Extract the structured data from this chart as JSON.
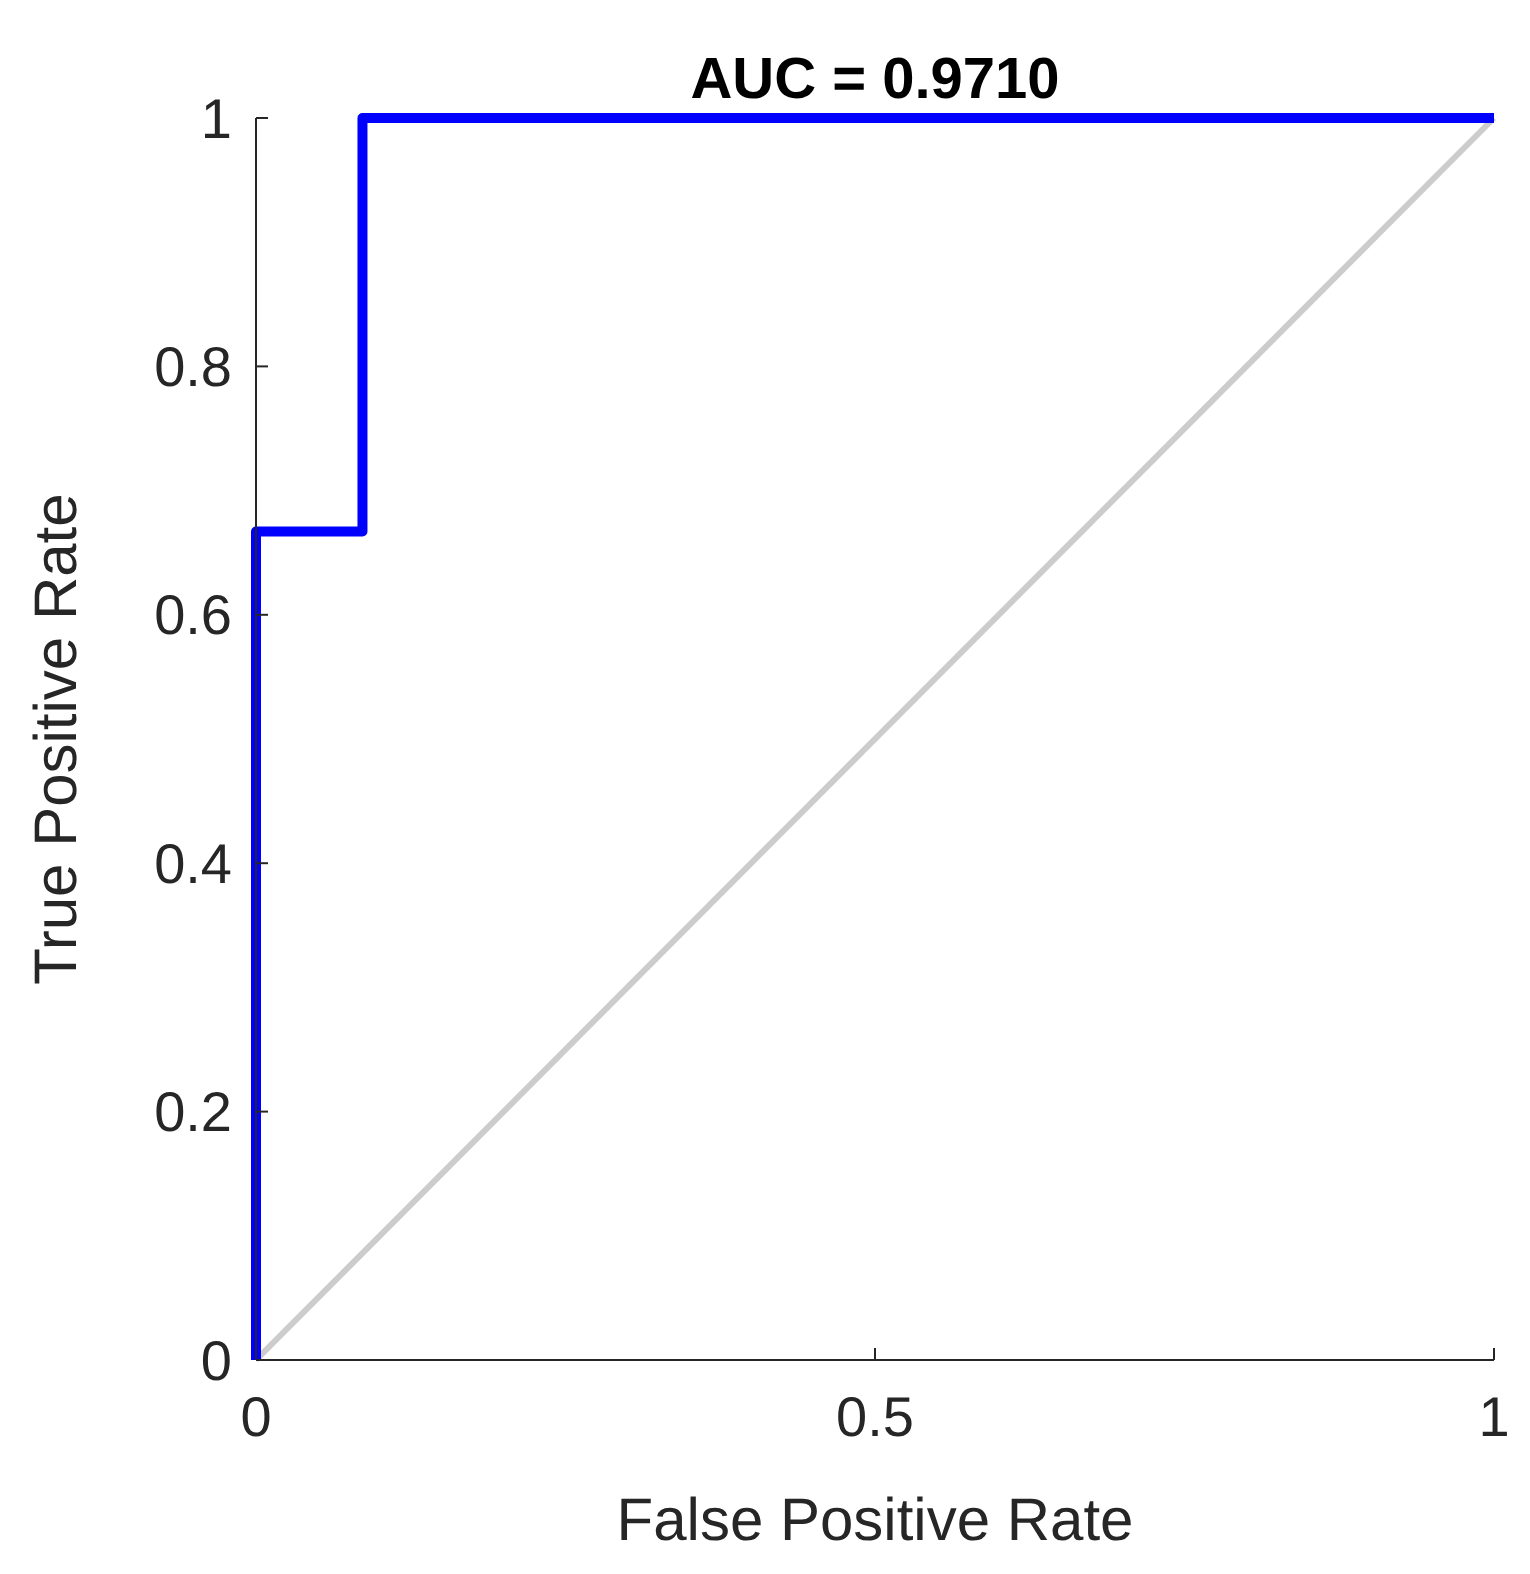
{
  "chart_data": {
    "type": "line",
    "title": "AUC = 0.9710",
    "xlabel": "False Positive Rate",
    "ylabel": "True Positive Rate",
    "series": [
      {
        "color": "#cccccc",
        "x": [
          0,
          1
        ],
        "values": [
          0,
          1
        ]
      },
      {
        "color": "#0000ff",
        "x": [
          0,
          0,
          0.086,
          0.086,
          1
        ],
        "values": [
          0,
          0.667,
          0.667,
          1,
          1
        ]
      }
    ],
    "xlim": [
      0,
      1
    ],
    "ylim": [
      0,
      1
    ],
    "xticks": [
      0,
      0.5,
      1
    ],
    "yticks": [
      0,
      0.2,
      0.4,
      0.6,
      0.8,
      1
    ],
    "grid": false,
    "marker": "none",
    "line_style": "solid"
  }
}
